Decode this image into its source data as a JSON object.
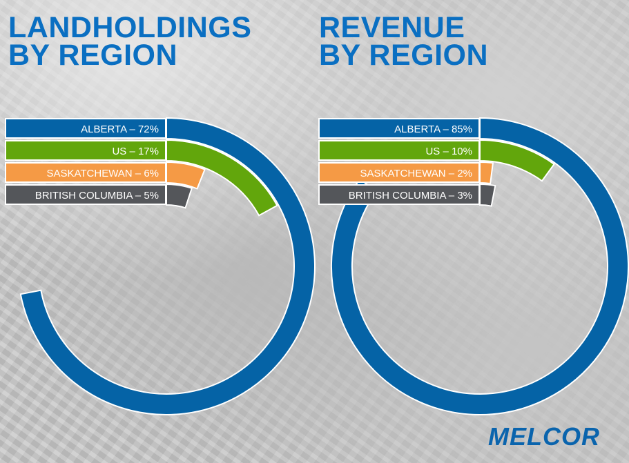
{
  "charts": {
    "left": {
      "title_line1": "LANDHOLDINGS",
      "title_line2": "BY REGION"
    },
    "right": {
      "title_line1": "REVENUE",
      "title_line2": "BY REGION"
    }
  },
  "labels": {
    "left": [
      "ALBERTA – 72%",
      "US – 17%",
      "SASKATCHEWAN – 6%",
      "BRITISH COLUMBIA – 5%"
    ],
    "right": [
      "ALBERTA – 85%",
      "US – 10%",
      "SASKATCHEWAN – 2%",
      "BRITISH COLUMBIA – 3%"
    ]
  },
  "logo": {
    "text": "MELCOR"
  },
  "colors": {
    "alberta": "#0563a6",
    "us": "#62a60c",
    "saskatchewan": "#f59a45",
    "british_columbia": "#54565a",
    "title": "#0a6fc2"
  },
  "chart_data": [
    {
      "type": "pie",
      "style": "radial-bar",
      "title": "LANDHOLDINGS BY REGION",
      "categories": [
        "Alberta",
        "US",
        "Saskatchewan",
        "British Columbia"
      ],
      "values": [
        72,
        17,
        6,
        5
      ],
      "unit": "%"
    },
    {
      "type": "pie",
      "style": "radial-bar",
      "title": "REVENUE BY REGION",
      "categories": [
        "Alberta",
        "US",
        "Saskatchewan",
        "British Columbia"
      ],
      "values": [
        85,
        10,
        2,
        3
      ],
      "unit": "%"
    }
  ]
}
